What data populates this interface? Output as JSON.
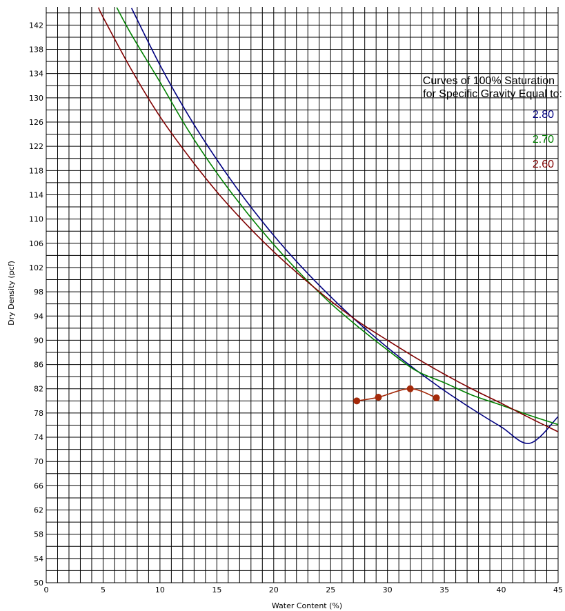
{
  "chart_data": {
    "type": "line",
    "xlabel": "Water Content (%)",
    "ylabel": "Dry Density (pcf)",
    "xlim": [
      0,
      45
    ],
    "ylim": [
      50,
      145
    ],
    "x_ticks": [
      0,
      5,
      10,
      15,
      20,
      25,
      30,
      35,
      40,
      45
    ],
    "y_ticks": [
      50,
      54,
      58,
      62,
      66,
      70,
      74,
      78,
      82,
      86,
      90,
      94,
      98,
      102,
      106,
      110,
      114,
      118,
      122,
      126,
      130,
      134,
      138,
      142
    ],
    "grid": true,
    "legend": {
      "placement": "top-right",
      "title_lines": [
        "Curves of 100% Saturation",
        "for Specific Gravity Equal to:"
      ]
    },
    "series": [
      {
        "name": "2.80",
        "color": "#000080",
        "x": [
          7.5,
          10,
          12.5,
          15,
          17.5,
          20,
          22.5,
          25,
          27.5,
          30,
          32.5,
          35,
          37.5,
          40,
          42.5,
          45
        ],
        "y": [
          144.8,
          135.4,
          127.1,
          119.8,
          113.2,
          107.3,
          102.0,
          97.2,
          92.8,
          88.8,
          85.1,
          81.7,
          78.6,
          75.7,
          73.0,
          77.4
        ]
      },
      {
        "name": "2.70",
        "color": "#008000",
        "x": [
          6.2,
          7.5,
          10,
          12.5,
          15,
          17.5,
          20,
          22.5,
          25,
          27.5,
          30,
          32.5,
          35,
          37.5,
          40,
          42.5,
          45
        ],
        "y": [
          144.9,
          140.4,
          132.6,
          124.6,
          117.6,
          111.4,
          105.8,
          100.7,
          96.1,
          92.1,
          88.4,
          85.0,
          83.0,
          80.9,
          79.3,
          77.6,
          76.1
        ]
      },
      {
        "name": "2.60",
        "color": "#800000",
        "x": [
          4.6,
          5,
          7.5,
          10,
          12.5,
          15,
          17.5,
          20,
          22.5,
          25,
          27.5,
          30,
          32.5,
          35,
          37.5,
          40,
          42.5,
          45
        ],
        "y": [
          144.9,
          143.3,
          134.6,
          126.9,
          120.4,
          114.5,
          109.3,
          104.6,
          100.4,
          96.5,
          93.0,
          90.0,
          87.1,
          84.4,
          81.9,
          79.6,
          77.2,
          74.9
        ]
      },
      {
        "name": "",
        "color": "#a52a0a",
        "x": [
          27.3,
          29.2,
          32.0,
          34.3
        ],
        "y": [
          80.0,
          80.6,
          82.0,
          80.5
        ]
      }
    ]
  }
}
